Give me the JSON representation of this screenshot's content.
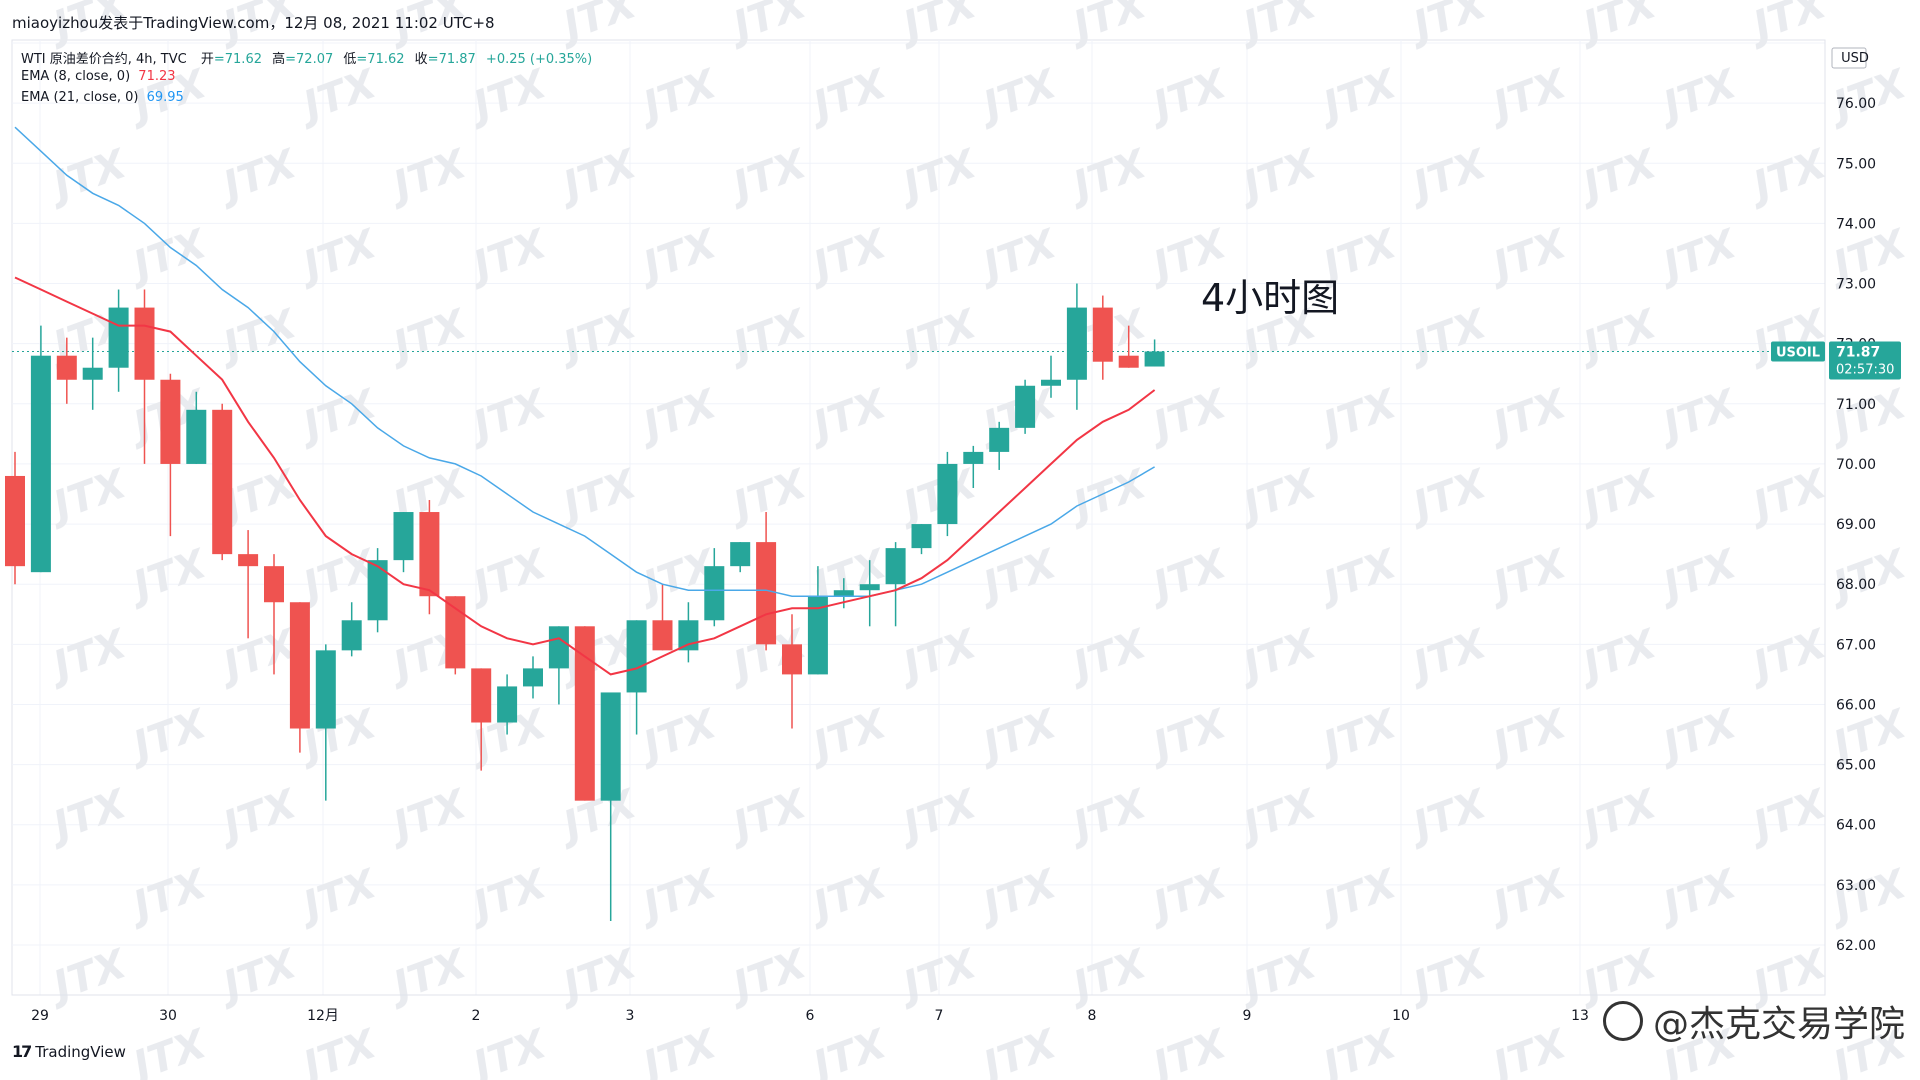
{
  "header": {
    "publisher": "miaoyizhou发表于TradingView.com，12月 08, 2021 11:02 UTC+8"
  },
  "legend": {
    "main": {
      "label": "WTI 原油差价合约, 4h, TVC",
      "open_label": "开",
      "open": "=71.62",
      "high_label": "高",
      "high": "=72.07",
      "low_label": "低",
      "low": "=71.62",
      "close_label": "收",
      "close": "=71.87",
      "change": "+0.25 (+0.35%)"
    },
    "ema8": {
      "label": "EMA (8, close, 0)",
      "value": "71.23"
    },
    "ema21": {
      "label": "EMA (21, close, 0)",
      "value": "69.95"
    }
  },
  "annotation": "4小时图",
  "currency": "USD",
  "price_tag": {
    "symbol": "USOIL",
    "price": "71.87",
    "countdown": "02:57:30"
  },
  "footer": {
    "brand": "TradingView",
    "watermark_text": "@杰克交易学院"
  },
  "colors": {
    "up": "#26a69a",
    "down": "#ef5350",
    "ema8": "#f23645",
    "ema21": "#4aa8e8",
    "tag": "#26a69a"
  },
  "chart_data": {
    "type": "candlestick",
    "symbol": "USOIL",
    "timeframe": "4h",
    "y_axis": {
      "min": 62,
      "max": 77,
      "ticks": [
        "62.00",
        "63.00",
        "64.00",
        "65.00",
        "66.00",
        "67.00",
        "68.00",
        "69.00",
        "70.00",
        "71.00",
        "72.00",
        "73.00",
        "74.00",
        "75.00",
        "76.00",
        "77.00"
      ]
    },
    "x_axis": {
      "labels": [
        "29",
        "30",
        "12月",
        "2",
        "3",
        "6",
        "7",
        "8",
        "9",
        "10",
        "13"
      ]
    },
    "candles": [
      {
        "o": 69.8,
        "h": 70.2,
        "l": 68.0,
        "c": 68.3
      },
      {
        "o": 68.2,
        "h": 72.3,
        "l": 68.2,
        "c": 71.8
      },
      {
        "o": 71.8,
        "h": 72.1,
        "l": 71.0,
        "c": 71.4
      },
      {
        "o": 71.4,
        "h": 72.1,
        "l": 70.9,
        "c": 71.6
      },
      {
        "o": 71.6,
        "h": 72.9,
        "l": 71.2,
        "c": 72.6
      },
      {
        "o": 72.6,
        "h": 72.9,
        "l": 70.0,
        "c": 71.4
      },
      {
        "o": 71.4,
        "h": 71.5,
        "l": 68.8,
        "c": 70.0
      },
      {
        "o": 70.0,
        "h": 71.2,
        "l": 70.0,
        "c": 70.9
      },
      {
        "o": 70.9,
        "h": 71.0,
        "l": 68.4,
        "c": 68.5
      },
      {
        "o": 68.5,
        "h": 68.9,
        "l": 67.1,
        "c": 68.3
      },
      {
        "o": 68.3,
        "h": 68.5,
        "l": 66.5,
        "c": 67.7
      },
      {
        "o": 67.7,
        "h": 67.7,
        "l": 65.2,
        "c": 65.6
      },
      {
        "o": 65.6,
        "h": 67.0,
        "l": 64.4,
        "c": 66.9
      },
      {
        "o": 66.9,
        "h": 67.7,
        "l": 66.8,
        "c": 67.4
      },
      {
        "o": 67.4,
        "h": 68.6,
        "l": 67.2,
        "c": 68.4
      },
      {
        "o": 68.4,
        "h": 69.2,
        "l": 68.2,
        "c": 69.2
      },
      {
        "o": 69.2,
        "h": 69.4,
        "l": 67.5,
        "c": 67.8
      },
      {
        "o": 67.8,
        "h": 67.8,
        "l": 66.5,
        "c": 66.6
      },
      {
        "o": 66.6,
        "h": 66.6,
        "l": 64.9,
        "c": 65.7
      },
      {
        "o": 65.7,
        "h": 66.5,
        "l": 65.5,
        "c": 66.3
      },
      {
        "o": 66.3,
        "h": 66.8,
        "l": 66.1,
        "c": 66.6
      },
      {
        "o": 66.6,
        "h": 67.3,
        "l": 66.0,
        "c": 67.3
      },
      {
        "o": 67.3,
        "h": 67.3,
        "l": 64.4,
        "c": 64.4
      },
      {
        "o": 64.4,
        "h": 66.2,
        "l": 62.4,
        "c": 66.2
      },
      {
        "o": 66.2,
        "h": 67.4,
        "l": 65.5,
        "c": 67.4
      },
      {
        "o": 67.4,
        "h": 68.0,
        "l": 66.9,
        "c": 66.9
      },
      {
        "o": 66.9,
        "h": 67.7,
        "l": 66.7,
        "c": 67.4
      },
      {
        "o": 67.4,
        "h": 68.6,
        "l": 67.3,
        "c": 68.3
      },
      {
        "o": 68.3,
        "h": 68.7,
        "l": 68.2,
        "c": 68.7
      },
      {
        "o": 68.7,
        "h": 69.2,
        "l": 66.9,
        "c": 67.0
      },
      {
        "o": 67.0,
        "h": 67.5,
        "l": 65.6,
        "c": 66.5
      },
      {
        "o": 66.5,
        "h": 68.3,
        "l": 66.5,
        "c": 67.8
      },
      {
        "o": 67.8,
        "h": 68.1,
        "l": 67.6,
        "c": 67.9
      },
      {
        "o": 67.9,
        "h": 68.4,
        "l": 67.3,
        "c": 68.0
      },
      {
        "o": 68.0,
        "h": 68.7,
        "l": 67.3,
        "c": 68.6
      },
      {
        "o": 68.6,
        "h": 69.0,
        "l": 68.5,
        "c": 69.0
      },
      {
        "o": 69.0,
        "h": 70.2,
        "l": 68.8,
        "c": 70.0
      },
      {
        "o": 70.0,
        "h": 70.3,
        "l": 69.6,
        "c": 70.2
      },
      {
        "o": 70.2,
        "h": 70.7,
        "l": 69.9,
        "c": 70.6
      },
      {
        "o": 70.6,
        "h": 71.4,
        "l": 70.5,
        "c": 71.3
      },
      {
        "o": 71.3,
        "h": 71.8,
        "l": 71.1,
        "c": 71.4
      },
      {
        "o": 71.4,
        "h": 73.0,
        "l": 70.9,
        "c": 72.6
      },
      {
        "o": 72.6,
        "h": 72.8,
        "l": 71.4,
        "c": 71.7
      },
      {
        "o": 71.8,
        "h": 72.3,
        "l": 71.6,
        "c": 71.6
      },
      {
        "o": 71.62,
        "h": 72.07,
        "l": 71.62,
        "c": 71.87
      }
    ],
    "series": [
      {
        "name": "EMA (8, close, 0)",
        "values": [
          73.1,
          72.9,
          72.7,
          72.5,
          72.3,
          72.3,
          72.2,
          71.8,
          71.4,
          70.7,
          70.1,
          69.4,
          68.8,
          68.5,
          68.3,
          68.0,
          67.9,
          67.6,
          67.3,
          67.1,
          67.0,
          67.1,
          66.8,
          66.5,
          66.6,
          66.8,
          67.0,
          67.1,
          67.3,
          67.5,
          67.6,
          67.6,
          67.7,
          67.8,
          67.9,
          68.1,
          68.4,
          68.8,
          69.2,
          69.6,
          70.0,
          70.4,
          70.7,
          70.9,
          71.23
        ]
      },
      {
        "name": "EMA (21, close, 0)",
        "values": [
          75.6,
          75.2,
          74.8,
          74.5,
          74.3,
          74.0,
          73.6,
          73.3,
          72.9,
          72.6,
          72.2,
          71.7,
          71.3,
          71.0,
          70.6,
          70.3,
          70.1,
          70.0,
          69.8,
          69.5,
          69.2,
          69.0,
          68.8,
          68.5,
          68.2,
          68.0,
          67.9,
          67.9,
          67.9,
          67.9,
          67.8,
          67.8,
          67.8,
          67.8,
          67.9,
          68.0,
          68.2,
          68.4,
          68.6,
          68.8,
          69.0,
          69.3,
          69.5,
          69.7,
          69.95
        ]
      }
    ],
    "last_price": 71.87
  }
}
